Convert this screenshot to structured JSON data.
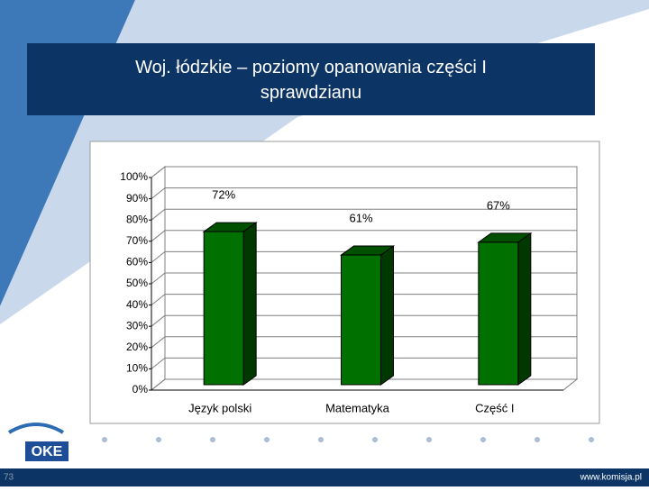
{
  "chart_data": {
    "type": "bar3d",
    "title": "Woj. łódzkie – poziomy opanowania części I sprawdzianu",
    "categories": [
      "Język polski",
      "Matematyka",
      "Część I"
    ],
    "values": [
      72,
      61,
      67
    ],
    "value_labels": [
      "72%",
      "61%",
      "67%"
    ],
    "color": "#007000",
    "ylim": [
      0,
      100
    ],
    "yticks": [
      {
        "value": 0,
        "label": "0%"
      },
      {
        "value": 10,
        "label": "10%"
      },
      {
        "value": 20,
        "label": "20%"
      },
      {
        "value": 30,
        "label": "30%"
      },
      {
        "value": 40,
        "label": "40%"
      },
      {
        "value": 50,
        "label": "50%"
      },
      {
        "value": 60,
        "label": "60%"
      },
      {
        "value": 70,
        "label": "70%"
      },
      {
        "value": 80,
        "label": "80%"
      },
      {
        "value": 90,
        "label": "90%"
      },
      {
        "value": 100,
        "label": "100%"
      }
    ],
    "grid": true
  },
  "logo": "OKE",
  "footer": {
    "url": "www.komisja.pl",
    "slide_number": "73"
  }
}
